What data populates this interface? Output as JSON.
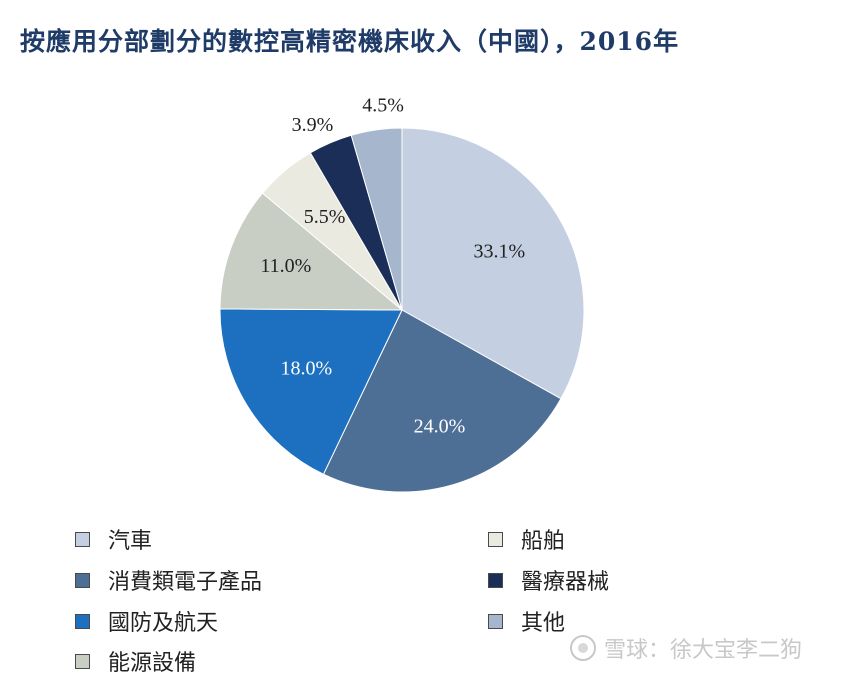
{
  "chart_data": {
    "type": "pie",
    "title": "按應用分部劃分的數控高精密機床收入（中國），2016年",
    "slices": [
      {
        "label": "汽車",
        "value": 33.1,
        "display": "33.1%",
        "color": "#c5cfe2",
        "text_color": "#222222"
      },
      {
        "label": "消費類電子產品",
        "value": 24.0,
        "display": "24.0%",
        "color": "#4e6f95",
        "text_color": "#ffffff"
      },
      {
        "label": "國防及航天",
        "value": 18.0,
        "display": "18.0%",
        "color": "#1d70bf",
        "text_color": "#ffffff"
      },
      {
        "label": "能源設備",
        "value": 11.0,
        "display": "11.0%",
        "color": "#c8cec4",
        "text_color": "#222222"
      },
      {
        "label": "船舶",
        "value": 5.5,
        "display": "5.5%",
        "color": "#ebeae0",
        "text_color": "#222222"
      },
      {
        "label": "醫療器械",
        "value": 3.9,
        "display": "3.9%",
        "color": "#1a2e57",
        "text_color": "#222222"
      },
      {
        "label": "其他",
        "value": 4.5,
        "display": "4.5%",
        "color": "#a6b6cc",
        "text_color": "#222222"
      }
    ],
    "legend_order": [
      "汽車",
      "船舶",
      "消費類電子產品",
      "醫療器械",
      "國防及航天",
      "其他",
      "能源設備"
    ],
    "legend_placement": "bottom"
  },
  "watermark": "雪球：徐大宝李二狗"
}
